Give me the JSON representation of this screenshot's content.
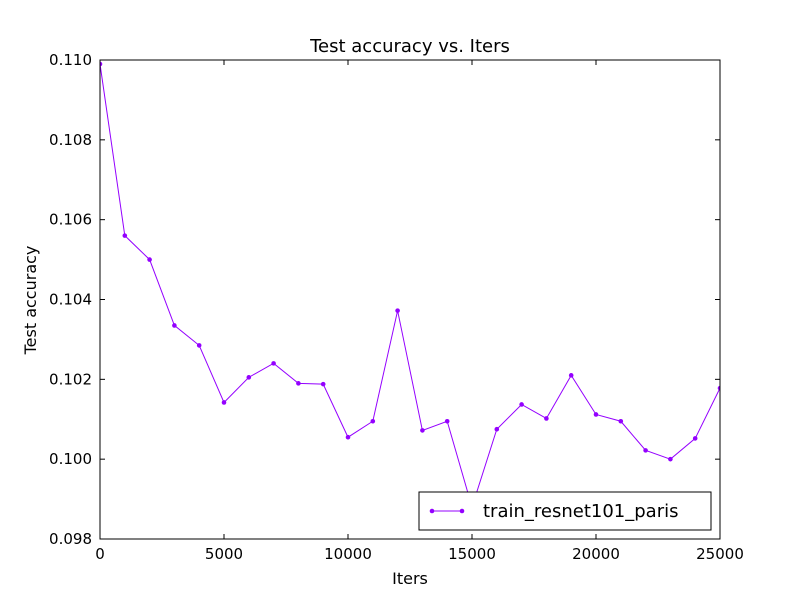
{
  "chart_data": {
    "type": "line",
    "title": "Test accuracy  vs. Iters",
    "xlabel": "Iters",
    "ylabel": "Test accuracy",
    "xlim": [
      0,
      25000
    ],
    "ylim": [
      0.098,
      0.11
    ],
    "xticks": [
      0,
      5000,
      10000,
      15000,
      20000,
      25000
    ],
    "xtick_labels": [
      "0",
      "5000",
      "10000",
      "15000",
      "20000",
      "25000"
    ],
    "yticks": [
      0.098,
      0.1,
      0.102,
      0.104,
      0.106,
      0.108,
      0.11
    ],
    "ytick_labels": [
      "0.098",
      "0.100",
      "0.102",
      "0.104",
      "0.106",
      "0.108",
      "0.110"
    ],
    "grid": false,
    "legend_position": "bottom-right",
    "series": [
      {
        "name": "train_resnet101_paris",
        "color": "#9400ff",
        "marker": "dot",
        "x": [
          0,
          1000,
          2000,
          3000,
          4000,
          5000,
          6000,
          7000,
          8000,
          9000,
          10000,
          11000,
          12000,
          13000,
          14000,
          15000,
          16000,
          17000,
          18000,
          19000,
          20000,
          21000,
          22000,
          23000,
          24000,
          25000
        ],
        "y": [
          0.1099,
          0.1056,
          0.105,
          0.10335,
          0.10285,
          0.10142,
          0.10205,
          0.1024,
          0.1019,
          0.10188,
          0.10055,
          0.10095,
          0.10372,
          0.10072,
          0.10095,
          0.0988,
          0.10075,
          0.10137,
          0.10102,
          0.1021,
          0.10112,
          0.10095,
          0.10022,
          0.1,
          0.10052,
          0.10178
        ]
      }
    ]
  }
}
